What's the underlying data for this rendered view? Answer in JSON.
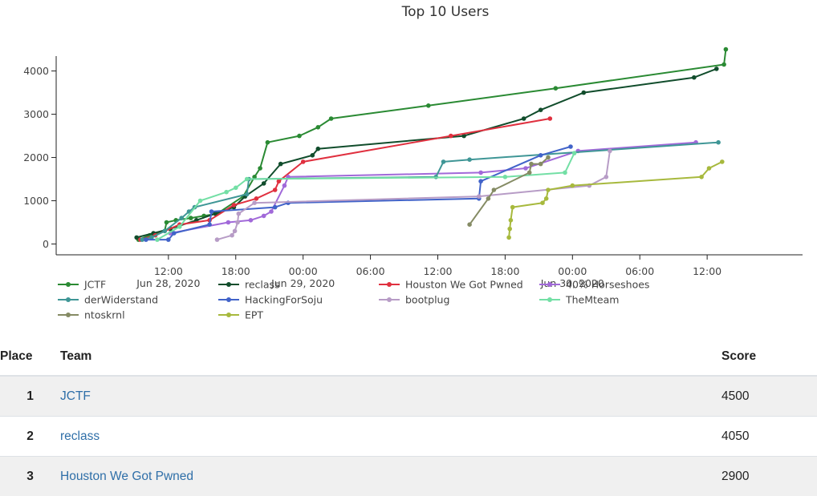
{
  "chart_data": {
    "type": "line",
    "title": "Top 10 Users",
    "x_is_time": true,
    "x_range": [
      "2020-06-28T02:00",
      "2020-06-30T20:30"
    ],
    "ylim": [
      -250,
      4900
    ],
    "y_ticks": [
      0,
      1000,
      2000,
      3000,
      4000
    ],
    "x_ticks": [
      {
        "t": "2020-06-28T12:00",
        "lines": [
          "12:00",
          "Jun 28, 2020"
        ]
      },
      {
        "t": "2020-06-28T18:00",
        "lines": [
          "18:00"
        ]
      },
      {
        "t": "2020-06-29T00:00",
        "lines": [
          "00:00",
          "Jun 29, 2020"
        ]
      },
      {
        "t": "2020-06-29T06:00",
        "lines": [
          "06:00"
        ]
      },
      {
        "t": "2020-06-29T12:00",
        "lines": [
          "12:00"
        ]
      },
      {
        "t": "2020-06-29T18:00",
        "lines": [
          "18:00"
        ]
      },
      {
        "t": "2020-06-30T00:00",
        "lines": [
          "00:00",
          "Jun 30, 2020"
        ]
      },
      {
        "t": "2020-06-30T06:00",
        "lines": [
          "06:00"
        ]
      },
      {
        "t": "2020-06-30T12:00",
        "lines": [
          "12:00"
        ]
      }
    ],
    "legend_position": "bottom",
    "grid": false,
    "series": [
      {
        "name": "JCTF",
        "color": "#2a8a33",
        "points": [
          [
            "2020-06-28T09:20",
            100
          ],
          [
            "2020-06-28T10:20",
            200
          ],
          [
            "2020-06-28T11:40",
            300
          ],
          [
            "2020-06-28T11:50",
            500
          ],
          [
            "2020-06-28T12:40",
            550
          ],
          [
            "2020-06-28T14:00",
            600
          ],
          [
            "2020-06-28T15:10",
            650
          ],
          [
            "2020-06-28T16:20",
            700
          ],
          [
            "2020-06-28T18:40",
            1100
          ],
          [
            "2020-06-28T19:40",
            1550
          ],
          [
            "2020-06-28T20:10",
            1750
          ],
          [
            "2020-06-28T20:50",
            2350
          ],
          [
            "2020-06-28T23:40",
            2500
          ],
          [
            "2020-06-29T01:20",
            2700
          ],
          [
            "2020-06-29T02:30",
            2900
          ],
          [
            "2020-06-29T11:10",
            3200
          ],
          [
            "2020-06-29T22:30",
            3600
          ],
          [
            "2020-06-30T13:30",
            4150
          ],
          [
            "2020-06-30T13:40",
            4500
          ]
        ]
      },
      {
        "name": "reclass",
        "color": "#114d2c",
        "points": [
          [
            "2020-06-28T09:10",
            150
          ],
          [
            "2020-06-28T10:40",
            250
          ],
          [
            "2020-06-28T12:10",
            350
          ],
          [
            "2020-06-28T14:30",
            550
          ],
          [
            "2020-06-28T16:10",
            700
          ],
          [
            "2020-06-28T17:50",
            850
          ],
          [
            "2020-06-28T18:50",
            1100
          ],
          [
            "2020-06-28T20:30",
            1400
          ],
          [
            "2020-06-28T22:00",
            1850
          ],
          [
            "2020-06-29T00:50",
            2050
          ],
          [
            "2020-06-29T01:20",
            2200
          ],
          [
            "2020-06-29T14:20",
            2500
          ],
          [
            "2020-06-29T19:40",
            2900
          ],
          [
            "2020-06-29T21:10",
            3100
          ],
          [
            "2020-06-30T01:00",
            3500
          ],
          [
            "2020-06-30T10:50",
            3850
          ],
          [
            "2020-06-30T12:50",
            4050
          ]
        ]
      },
      {
        "name": "Houston We Got Pwned",
        "color": "#e0303f",
        "points": [
          [
            "2020-06-28T09:30",
            100
          ],
          [
            "2020-06-28T10:50",
            200
          ],
          [
            "2020-06-28T13:00",
            450
          ],
          [
            "2020-06-28T15:40",
            550
          ],
          [
            "2020-06-28T17:50",
            900
          ],
          [
            "2020-06-28T19:50",
            1050
          ],
          [
            "2020-06-28T21:30",
            1250
          ],
          [
            "2020-06-28T21:50",
            1450
          ],
          [
            "2020-06-29T00:00",
            1900
          ],
          [
            "2020-06-29T13:10",
            2500
          ],
          [
            "2020-06-29T22:00",
            2900
          ]
        ]
      },
      {
        "name": "40% Horseshoes",
        "color": "#a169d9",
        "points": [
          [
            "2020-06-28T12:10",
            250
          ],
          [
            "2020-06-28T17:20",
            500
          ],
          [
            "2020-06-28T19:20",
            550
          ],
          [
            "2020-06-28T20:30",
            650
          ],
          [
            "2020-06-28T21:10",
            750
          ],
          [
            "2020-06-28T22:20",
            1350
          ],
          [
            "2020-06-28T22:40",
            1550
          ],
          [
            "2020-06-29T15:50",
            1650
          ],
          [
            "2020-06-29T19:50",
            1750
          ],
          [
            "2020-06-30T00:30",
            2150
          ],
          [
            "2020-06-30T11:00",
            2350
          ]
        ]
      },
      {
        "name": "derWiderstand",
        "color": "#3f9696",
        "points": [
          [
            "2020-06-28T09:40",
            100
          ],
          [
            "2020-06-28T10:30",
            150
          ],
          [
            "2020-06-28T11:40",
            300
          ],
          [
            "2020-06-28T13:10",
            600
          ],
          [
            "2020-06-28T13:50",
            750
          ],
          [
            "2020-06-28T14:20",
            850
          ],
          [
            "2020-06-28T19:00",
            1150
          ],
          [
            "2020-06-28T19:10",
            1500
          ],
          [
            "2020-06-29T11:50",
            1550
          ],
          [
            "2020-06-29T12:30",
            1900
          ],
          [
            "2020-06-29T14:50",
            1950
          ],
          [
            "2020-06-30T13:00",
            2350
          ]
        ]
      },
      {
        "name": "HackingForSoju",
        "color": "#4163c9",
        "points": [
          [
            "2020-06-28T10:00",
            100
          ],
          [
            "2020-06-28T12:00",
            100
          ],
          [
            "2020-06-28T12:30",
            250
          ],
          [
            "2020-06-28T15:40",
            450
          ],
          [
            "2020-06-28T15:50",
            750
          ],
          [
            "2020-06-28T21:30",
            850
          ],
          [
            "2020-06-28T22:40",
            950
          ],
          [
            "2020-06-29T15:40",
            1050
          ],
          [
            "2020-06-29T15:50",
            1450
          ],
          [
            "2020-06-29T21:10",
            2050
          ],
          [
            "2020-06-29T23:50",
            2250
          ]
        ]
      },
      {
        "name": "bootplug",
        "color": "#b79cc6",
        "points": [
          [
            "2020-06-28T16:20",
            100
          ],
          [
            "2020-06-28T17:40",
            200
          ],
          [
            "2020-06-28T17:55",
            300
          ],
          [
            "2020-06-28T18:10",
            500
          ],
          [
            "2020-06-28T18:15",
            700
          ],
          [
            "2020-06-28T19:40",
            950
          ],
          [
            "2020-06-29T15:40",
            1100
          ],
          [
            "2020-06-30T01:30",
            1350
          ],
          [
            "2020-06-30T03:00",
            1550
          ],
          [
            "2020-06-30T03:20",
            2150
          ]
        ]
      },
      {
        "name": "TheMteam",
        "color": "#73dfa5",
        "points": [
          [
            "2020-06-28T11:00",
            100
          ],
          [
            "2020-06-28T13:00",
            400
          ],
          [
            "2020-06-28T14:50",
            1000
          ],
          [
            "2020-06-28T17:10",
            1200
          ],
          [
            "2020-06-28T18:00",
            1300
          ],
          [
            "2020-06-28T19:00",
            1500
          ],
          [
            "2020-06-29T18:00",
            1550
          ],
          [
            "2020-06-29T23:20",
            1650
          ],
          [
            "2020-06-30T00:10",
            2100
          ]
        ]
      },
      {
        "name": "ntoskrnl",
        "color": "#858b64",
        "points": [
          [
            "2020-06-29T14:50",
            450
          ],
          [
            "2020-06-29T16:30",
            1050
          ],
          [
            "2020-06-29T17:00",
            1250
          ],
          [
            "2020-06-29T20:10",
            1650
          ],
          [
            "2020-06-29T20:20",
            1850
          ],
          [
            "2020-06-29T21:10",
            1850
          ],
          [
            "2020-06-29T21:50",
            2000
          ]
        ]
      },
      {
        "name": "EPT",
        "color": "#a7b93d",
        "points": [
          [
            "2020-06-29T18:20",
            150
          ],
          [
            "2020-06-29T18:25",
            350
          ],
          [
            "2020-06-29T18:30",
            550
          ],
          [
            "2020-06-29T18:40",
            850
          ],
          [
            "2020-06-29T21:20",
            950
          ],
          [
            "2020-06-29T21:40",
            1050
          ],
          [
            "2020-06-29T21:50",
            1250
          ],
          [
            "2020-06-30T00:00",
            1350
          ],
          [
            "2020-06-30T11:30",
            1550
          ],
          [
            "2020-06-30T12:10",
            1750
          ],
          [
            "2020-06-30T13:20",
            1900
          ]
        ]
      }
    ]
  },
  "scoreboard": {
    "headers": {
      "place": "Place",
      "team": "Team",
      "score": "Score"
    },
    "rows": [
      {
        "place": "1",
        "team": "JCTF",
        "score": "4500"
      },
      {
        "place": "2",
        "team": "reclass",
        "score": "4050"
      },
      {
        "place": "3",
        "team": "Houston We Got Pwned",
        "score": "2900"
      }
    ]
  }
}
